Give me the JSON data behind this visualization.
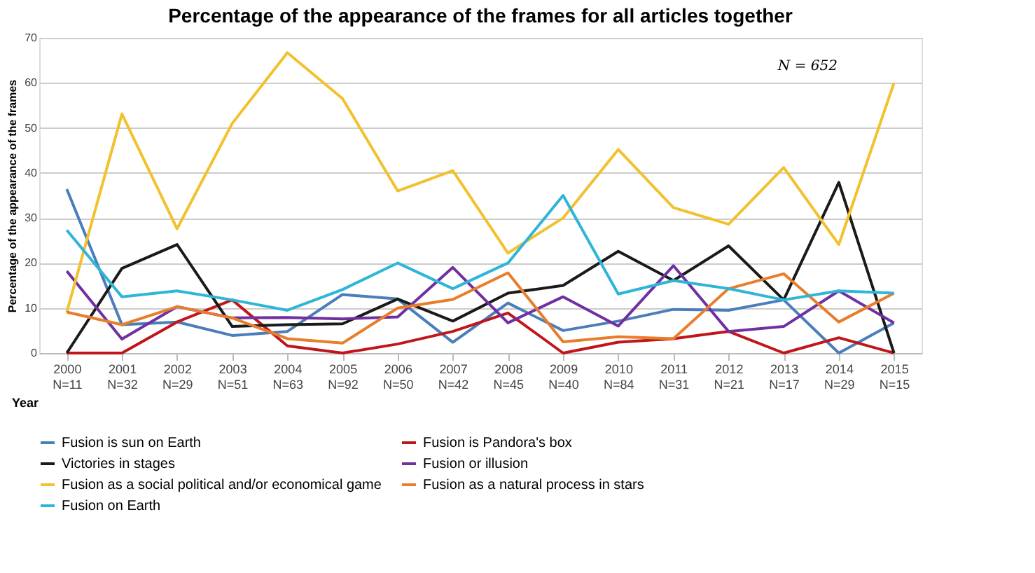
{
  "chart_data": {
    "type": "line",
    "title": "Percentage of the appearance of the frames for all articles together",
    "xlabel": "Year",
    "ylabel": "Percentage of the appearance of the frames",
    "categories": [
      "2000\nN=11",
      "2001\nN=32",
      "2002\nN=29",
      "2003\nN=51",
      "2004\nN=63",
      "2005\nN=92",
      "2006\nN=50",
      "2007\nN=42",
      "2008\nN=45",
      "2009\nN=40",
      "2010\nN=84",
      "2011\nN=31",
      "2012\nN=21",
      "2013\nN=17",
      "2014\nN=29",
      "2015\nN=15"
    ],
    "series": [
      {
        "name": "Fusion is sun on  Earth",
        "color": "#4a7ebb",
        "values": [
          36.4,
          6.3,
          6.9,
          3.9,
          4.8,
          13.0,
          12.0,
          2.4,
          11.1,
          5.0,
          7.1,
          9.7,
          9.5,
          11.8,
          0,
          6.7
        ]
      },
      {
        "name": "Fusion is Pandora's box",
        "color": "#c0161b",
        "values": [
          0,
          0,
          6.9,
          11.8,
          1.6,
          0,
          2.0,
          4.8,
          8.9,
          0,
          2.4,
          3.2,
          4.8,
          0,
          3.4,
          0
        ]
      },
      {
        "name": "Victories in stages",
        "color": "#1a1a1a",
        "values": [
          0,
          18.8,
          24.1,
          5.9,
          6.3,
          6.5,
          12.0,
          7.1,
          13.3,
          15.0,
          22.6,
          16.1,
          23.8,
          11.8,
          37.9,
          0
        ]
      },
      {
        "name": "Fusion or illusion",
        "color": "#7030a0",
        "values": [
          18.2,
          3.1,
          10.3,
          7.8,
          7.9,
          7.6,
          8.0,
          19.0,
          6.7,
          12.5,
          6.0,
          19.4,
          4.8,
          5.9,
          13.8,
          6.7
        ]
      },
      {
        "name": "Fusion as a social political and/or economical game",
        "color": "#f2c12e",
        "values": [
          9.1,
          53.1,
          27.6,
          51.0,
          66.7,
          56.5,
          36.0,
          40.5,
          22.2,
          30.0,
          45.2,
          32.3,
          28.6,
          41.2,
          24.1,
          60.0
        ]
      },
      {
        "name": "Fusion as a natural process in stars",
        "color": "#e87d2b",
        "values": [
          9.1,
          6.3,
          10.3,
          7.8,
          3.2,
          2.2,
          10.0,
          11.9,
          17.8,
          2.5,
          3.6,
          3.2,
          14.3,
          17.6,
          6.9,
          13.3
        ]
      },
      {
        "name": "Fusion on Earth",
        "color": "#2fb5d8",
        "values": [
          27.3,
          12.5,
          13.8,
          11.8,
          9.5,
          14.1,
          20.0,
          14.3,
          20.0,
          35.0,
          13.1,
          16.1,
          14.3,
          11.8,
          13.8,
          13.3
        ]
      }
    ],
    "ylim": [
      0,
      70
    ],
    "yticks": [
      0,
      10,
      20,
      30,
      40,
      50,
      60,
      70
    ],
    "grid": "y",
    "legend": "bottom",
    "marker": "none",
    "line_style": "solid",
    "annotations": [
      "N = 652"
    ]
  }
}
